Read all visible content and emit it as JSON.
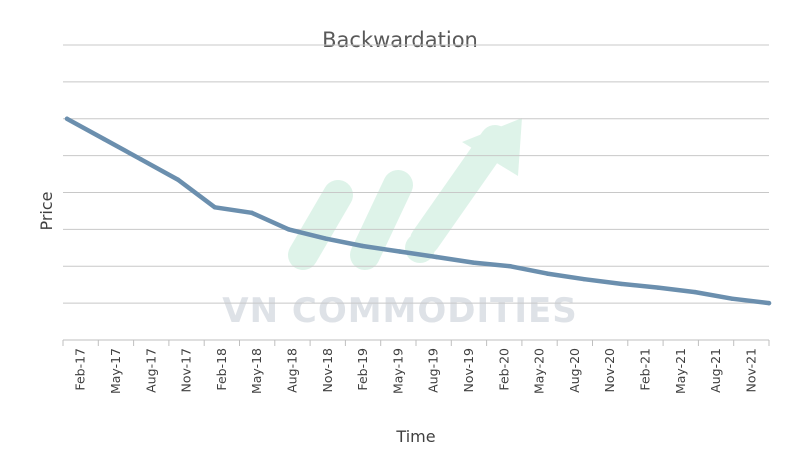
{
  "chart_data": {
    "type": "line",
    "title": "Backwardation",
    "xlabel": "Time",
    "ylabel": "Price",
    "categories": [
      "Feb-17",
      "May-17",
      "Aug-17",
      "Nov-17",
      "Feb-18",
      "May-18",
      "Aug-18",
      "Nov-18",
      "Feb-19",
      "May-19",
      "Aug-19",
      "Nov-19",
      "Feb-20",
      "May-20",
      "Aug-20",
      "Nov-20",
      "Feb-21",
      "May-21",
      "Aug-21",
      "Nov-21"
    ],
    "ylim": [
      0,
      8
    ],
    "grid": true,
    "series": [
      {
        "values": [
          6.0,
          5.45,
          4.9,
          4.35,
          3.6,
          3.45,
          3.0,
          2.75,
          2.55,
          2.4,
          2.25,
          2.1,
          2.0,
          1.8,
          1.65,
          1.52,
          1.42,
          1.3,
          1.12,
          1.0
        ],
        "color": "#6b8fae"
      }
    ],
    "watermark": {
      "text": "VN COMMODITIES",
      "text_color": "#d9dde3",
      "logo_color": "#d9f2e6"
    }
  }
}
